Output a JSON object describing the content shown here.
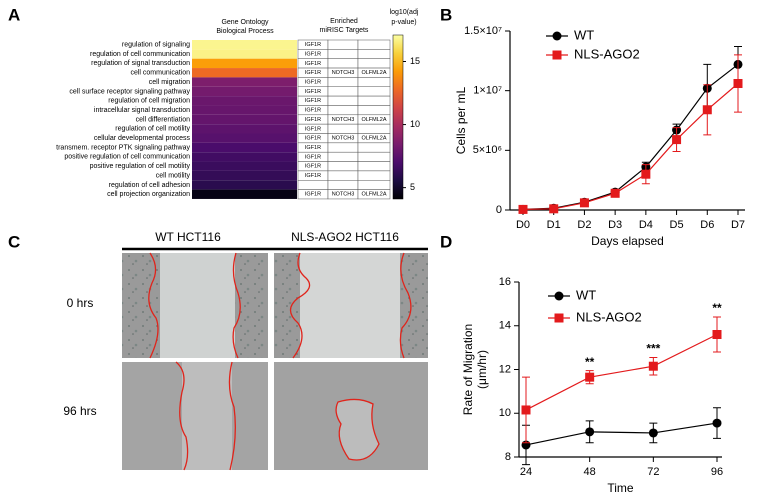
{
  "panel_labels": [
    "A",
    "B",
    "C",
    "D"
  ],
  "chart_data": [
    {
      "type": "heatmap",
      "header": [
        "Gene Ontology",
        "Biological Process"
      ],
      "targets_header": [
        "Enriched",
        "miRISC Targets"
      ],
      "colorbar_label": [
        "log10(adj",
        "p-value)"
      ],
      "categories": [
        "regulation of signaling",
        "regulation of cell communication",
        "regulation of signal transduction",
        "cell communication",
        "cell migration",
        "cell surface receptor signaling pathway",
        "regulation of cell migration",
        "intracellular signal transduction",
        "cell differentiation",
        "regulation of cell motility",
        "cellular developmental process",
        "transmem. receptor PTK signaling pathway",
        "positive regulation of cell communication",
        "positive regulation of cell motility",
        "cell motility",
        "regulation of cell adhesion",
        "cell projection organization"
      ],
      "values": [
        16.8,
        16.7,
        14.3,
        12.8,
        8.6,
        8.3,
        8.0,
        7.9,
        7.8,
        7.6,
        7.4,
        7.0,
        6.7,
        6.5,
        6.3,
        6.0,
        4.5
      ],
      "targets": [
        [
          "IGF1R"
        ],
        [
          "IGF1R"
        ],
        [
          "IGF1R"
        ],
        [
          "IGF1R",
          "NOTCH3",
          "OLFML2A"
        ],
        [
          "IGF1R"
        ],
        [
          "IGF1R"
        ],
        [
          "IGF1R"
        ],
        [
          "IGF1R"
        ],
        [
          "IGF1R",
          "NOTCH3",
          "OLFML2A"
        ],
        [
          "IGF1R"
        ],
        [
          "IGF1R",
          "NOTCH3",
          "OLFML2A"
        ],
        [
          "IGF1R"
        ],
        [
          "IGF1R"
        ],
        [
          "IGF1R"
        ],
        [
          "IGF1R"
        ],
        [],
        [
          "IGF1R",
          "NOTCH3",
          "OLFML2A"
        ]
      ],
      "clim": [
        4.1,
        17.1
      ],
      "cticks": [
        5,
        10,
        15
      ],
      "colormap": [
        "#000004",
        "#1b0c41",
        "#4a0c6b",
        "#781c6d",
        "#a52c60",
        "#cf4446",
        "#ed6925",
        "#fb9b06",
        "#f7d13d",
        "#fcffa4"
      ]
    },
    {
      "type": "line",
      "xlabel": "Days elapsed",
      "ylabel": "Cells per mL",
      "legend": "top-left",
      "categories": [
        "D0",
        "D1",
        "D2",
        "D3",
        "D4",
        "D5",
        "D6",
        "D7"
      ],
      "ylim": [
        0,
        15000000
      ],
      "yticks": [
        0,
        {
          "value": 5000000,
          "label": "5×10⁶"
        },
        {
          "value": 10000000,
          "label": "1×10⁷"
        },
        {
          "value": 15000000,
          "label": "1.5×10⁷"
        }
      ],
      "series": [
        {
          "name": "WT",
          "color": "#000000",
          "marker": "circle",
          "values": [
            50000,
            150000,
            650000,
            1500000,
            3600000,
            6700000,
            10200000,
            12200000
          ],
          "errors": [
            20000,
            50000,
            100000,
            100000,
            400000,
            500000,
            2000000,
            1500000
          ]
        },
        {
          "name": "NLS-AGO2",
          "color": "#e31a1c",
          "marker": "square",
          "values": [
            50000,
            100000,
            600000,
            1400000,
            3000000,
            5900000,
            8400000,
            10600000
          ],
          "errors": [
            20000,
            50000,
            150000,
            200000,
            800000,
            1000000,
            2100000,
            2400000
          ]
        }
      ]
    },
    {
      "type": "line",
      "xlabel": "Time",
      "ylabel": [
        "Rate of Migration",
        "(μm/hr)"
      ],
      "legend": "top-left",
      "x": [
        24,
        48,
        72,
        96
      ],
      "xlim": [
        24,
        96
      ],
      "xticks": [
        24,
        48,
        72,
        96
      ],
      "ylim": [
        8,
        16
      ],
      "yticks": [
        8,
        10,
        12,
        14,
        16
      ],
      "significance": [
        null,
        "**",
        "***",
        "**"
      ],
      "series": [
        {
          "name": "WT",
          "color": "#000000",
          "marker": "circle",
          "values": [
            8.55,
            9.15,
            9.1,
            9.55
          ],
          "errors": [
            0.9,
            0.5,
            0.45,
            0.7
          ]
        },
        {
          "name": "NLS-AGO2",
          "color": "#e31a1c",
          "marker": "square",
          "values": [
            10.15,
            11.65,
            12.15,
            13.6
          ],
          "errors": [
            1.5,
            0.3,
            0.4,
            0.8
          ]
        }
      ]
    }
  ],
  "micrographs": {
    "column_labels": [
      "WT HCT116",
      "NLS-AGO2 HCT116"
    ],
    "row_labels": [
      "0 hrs",
      "96 hrs"
    ]
  }
}
